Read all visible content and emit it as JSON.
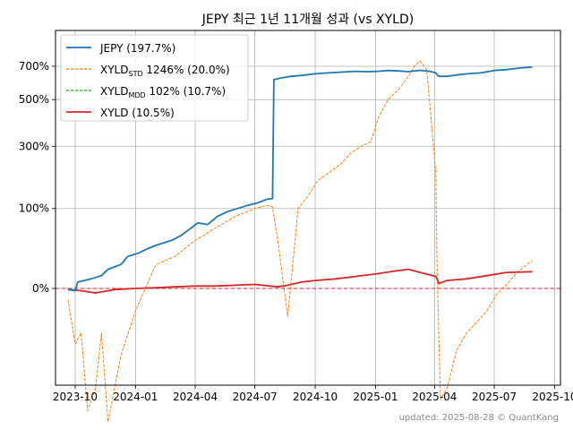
{
  "chart_data": {
    "type": "line",
    "title": "JEPY 최근 1년 11개월 성과 (vs XYLD)",
    "footer": "updated: 2025-08-28 © QuantKang",
    "y_tick_labels": [
      "0%",
      "100%",
      "300%",
      "500%",
      "700%"
    ],
    "x_tick_labels": [
      "2023-10",
      "2024-01",
      "2024-04",
      "2024-07",
      "2024-10",
      "2025-01",
      "2025-04",
      "2025-07",
      "2025-10"
    ],
    "x_ticks": [
      "2023-10-01",
      "2024-01-01",
      "2024-04-01",
      "2024-07-01",
      "2024-10-01",
      "2025-01-01",
      "2025-04-01",
      "2025-07-01",
      "2025-10-01"
    ],
    "xlim": [
      "2023-09-01",
      "2025-10-10"
    ],
    "yscale": "nonlinear, ticks at 0%, 100%, 300%, 500%, 700%",
    "ylim": [
      -60,
      880
    ],
    "grid": true,
    "legend_position": "top-left",
    "reference_line": {
      "y": 0,
      "color": "#d62728",
      "style": "dashed"
    },
    "series": [
      {
        "name": "JEPY (197.7%)",
        "label_main": "JEPY (197.7%)",
        "color": "#1f77b4",
        "style": "solid",
        "x": [
          "2023-09-20",
          "2023-10-01",
          "2023-10-05",
          "2023-10-25",
          "2023-11-10",
          "2023-11-20",
          "2023-12-10",
          "2023-12-20",
          "2024-01-05",
          "2024-01-20",
          "2024-02-05",
          "2024-02-25",
          "2024-03-10",
          "2024-03-25",
          "2024-04-05",
          "2024-04-20",
          "2024-05-05",
          "2024-05-20",
          "2024-06-05",
          "2024-06-20",
          "2024-07-05",
          "2024-07-20",
          "2024-07-28",
          "2024-07-30",
          "2024-08-10",
          "2024-08-25",
          "2024-09-10",
          "2024-10-01",
          "2024-10-20",
          "2024-11-10",
          "2024-12-01",
          "2024-12-20",
          "2025-01-05",
          "2025-01-20",
          "2025-02-05",
          "2025-02-20",
          "2025-03-10",
          "2025-03-25",
          "2025-04-03",
          "2025-04-07",
          "2025-04-20",
          "2025-05-05",
          "2025-05-20",
          "2025-06-10",
          "2025-07-01",
          "2025-07-20",
          "2025-08-10",
          "2025-08-28"
        ],
        "values": [
          -1,
          -2,
          8,
          12,
          16,
          24,
          30,
          40,
          44,
          50,
          55,
          60,
          66,
          75,
          82,
          80,
          90,
          96,
          100,
          110,
          118,
          130,
          132,
          620,
          630,
          640,
          645,
          655,
          660,
          665,
          670,
          668,
          670,
          675,
          672,
          668,
          676,
          670,
          660,
          640,
          640,
          648,
          655,
          660,
          675,
          680,
          690,
          695
        ]
      },
      {
        "name": "XYLD_STD 1246% (20.0%)",
        "label_main": "XYLD",
        "label_sub": "STD",
        "label_rest": " 1246% (20.0%)",
        "color": "#ff7f0e",
        "style": "dashed",
        "x": [
          "2023-09-20",
          "2023-10-01",
          "2023-10-10",
          "2023-10-20",
          "2023-11-01",
          "2023-11-10",
          "2023-11-20",
          "2023-12-10",
          "2024-01-01",
          "2024-02-01",
          "2024-03-01",
          "2024-04-01",
          "2024-05-01",
          "2024-06-01",
          "2024-07-01",
          "2024-07-20",
          "2024-07-28",
          "2024-08-05",
          "2024-08-20",
          "2024-09-05",
          "2024-09-20",
          "2024-10-05",
          "2024-10-25",
          "2024-11-10",
          "2024-11-25",
          "2024-12-10",
          "2024-12-25",
          "2025-01-05",
          "2025-01-20",
          "2025-02-05",
          "2025-02-20",
          "2025-03-01",
          "2025-03-10",
          "2025-03-20",
          "2025-03-28",
          "2025-04-03",
          "2025-04-05",
          "2025-04-10",
          "2025-04-20",
          "2025-05-05",
          "2025-05-20",
          "2025-06-05",
          "2025-06-20",
          "2025-07-05",
          "2025-07-20",
          "2025-08-05",
          "2025-08-20",
          "2025-08-28"
        ],
        "values": [
          -10,
          -50,
          -40,
          -110,
          -90,
          -40,
          -120,
          -60,
          -20,
          30,
          40,
          60,
          75,
          90,
          100,
          110,
          105,
          60,
          -25,
          100,
          140,
          190,
          220,
          245,
          280,
          300,
          320,
          420,
          500,
          560,
          640,
          700,
          730,
          680,
          380,
          210,
          20,
          -100,
          -90,
          -55,
          -40,
          -30,
          -20,
          -5,
          5,
          20,
          30,
          35
        ]
      },
      {
        "name": "XYLD_MDD 102% (10.7%)",
        "label_main": "XYLD",
        "label_sub": "MDD",
        "label_rest": " 102% (10.7%)",
        "color": "#2ca02c",
        "style": "dashed",
        "x": [
          "2023-09-20",
          "2023-10-10",
          "2023-11-01",
          "2023-12-01",
          "2024-01-01",
          "2024-02-01",
          "2024-03-01",
          "2024-04-01",
          "2024-05-01",
          "2024-06-01",
          "2024-07-01",
          "2024-08-05",
          "2024-08-20",
          "2024-09-10",
          "2024-10-01",
          "2024-11-01",
          "2024-12-01",
          "2025-01-01",
          "2025-02-01",
          "2025-02-20",
          "2025-03-10",
          "2025-04-03",
          "2025-04-08",
          "2025-04-20",
          "2025-05-20",
          "2025-06-20",
          "2025-07-20",
          "2025-08-28"
        ],
        "values": [
          -1,
          -2,
          -4,
          -1,
          0,
          1,
          2,
          3,
          3,
          4,
          5,
          2,
          4,
          8,
          10,
          12,
          15,
          18,
          22,
          24,
          20,
          15,
          6,
          10,
          12,
          16,
          20,
          21
        ]
      },
      {
        "name": "XYLD (10.5%)",
        "label_main": "XYLD (10.5%)",
        "color": "#d62728",
        "style": "solid",
        "x": [
          "2023-09-20",
          "2023-10-10",
          "2023-11-01",
          "2023-12-01",
          "2024-01-01",
          "2024-02-01",
          "2024-03-01",
          "2024-04-01",
          "2024-05-01",
          "2024-06-01",
          "2024-07-01",
          "2024-08-05",
          "2024-08-20",
          "2024-09-10",
          "2024-10-01",
          "2024-11-01",
          "2024-12-01",
          "2025-01-01",
          "2025-02-01",
          "2025-02-20",
          "2025-03-10",
          "2025-04-03",
          "2025-04-08",
          "2025-04-20",
          "2025-05-20",
          "2025-06-20",
          "2025-07-20",
          "2025-08-28"
        ],
        "values": [
          -1,
          -2,
          -4,
          -1,
          0,
          1,
          2,
          3,
          3,
          4,
          5,
          2,
          4,
          8,
          10,
          12,
          15,
          18,
          22,
          24,
          20,
          15,
          6,
          10,
          12,
          16,
          20,
          21
        ]
      }
    ]
  }
}
